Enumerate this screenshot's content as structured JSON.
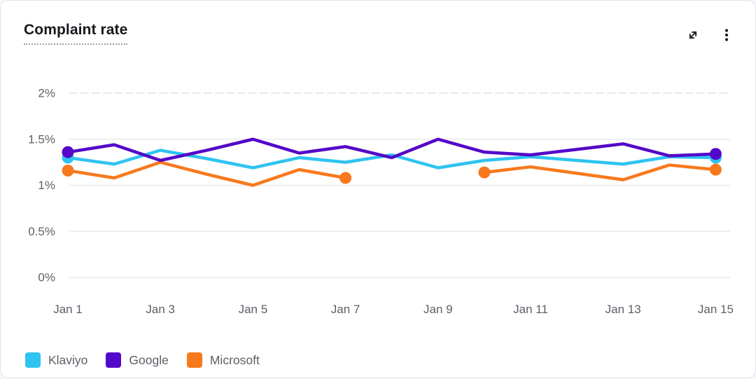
{
  "header": {
    "title": "Complaint rate",
    "expand_tooltip": "Expand",
    "menu_tooltip": "More options"
  },
  "chart_data": {
    "type": "line",
    "title": "Complaint rate",
    "unit": "%",
    "x": [
      "Jan 1",
      "Jan 2",
      "Jan 3",
      "Jan 4",
      "Jan 5",
      "Jan 6",
      "Jan 7",
      "Jan 8",
      "Jan 9",
      "Jan 10",
      "Jan 11",
      "Jan 12",
      "Jan 13",
      "Jan 14",
      "Jan 15"
    ],
    "x_tick_indices": [
      0,
      2,
      4,
      6,
      8,
      10,
      12,
      14
    ],
    "x_tick_labels": [
      "Jan 1",
      "Jan 3",
      "Jan 5",
      "Jan 7",
      "Jan 9",
      "Jan 11",
      "Jan 13",
      "Jan 15"
    ],
    "y_ticks": [
      {
        "value": 0,
        "label": "0%"
      },
      {
        "value": 0.5,
        "label": "0.5%"
      },
      {
        "value": 1,
        "label": "1%"
      },
      {
        "value": 1.5,
        "label": "1.5%"
      },
      {
        "value": 2,
        "label": "2%"
      }
    ],
    "ylim": [
      0,
      2
    ],
    "grid": "horizontal",
    "legend_position": "bottom-left",
    "series": [
      {
        "name": "Klaviyo",
        "color": "#2EC3F1",
        "values": [
          1.3,
          1.23,
          1.38,
          1.29,
          1.19,
          1.3,
          1.25,
          1.33,
          1.19,
          1.27,
          1.31,
          1.27,
          1.23,
          1.31,
          1.3
        ],
        "marker_indices": [
          0,
          14
        ]
      },
      {
        "name": "Google",
        "color": "#5408C9",
        "values": [
          1.36,
          1.44,
          1.27,
          1.38,
          1.5,
          1.35,
          1.42,
          1.3,
          1.5,
          1.36,
          1.33,
          1.39,
          1.45,
          1.32,
          1.34
        ],
        "marker_indices": [
          0,
          14
        ]
      },
      {
        "name": "Microsoft",
        "color": "#F8791C",
        "values": [
          1.16,
          1.08,
          1.25,
          1.12,
          1.0,
          1.17,
          1.08,
          null,
          null,
          1.14,
          1.2,
          1.13,
          1.06,
          1.22,
          1.17
        ],
        "marker_indices": [
          0,
          6,
          9,
          14
        ]
      }
    ],
    "colors": {
      "grid_line": "#e9eaec",
      "top_dashed_line": "#e0e2e5",
      "axis_text": "#5c6067",
      "title_text": "#16181c"
    }
  }
}
